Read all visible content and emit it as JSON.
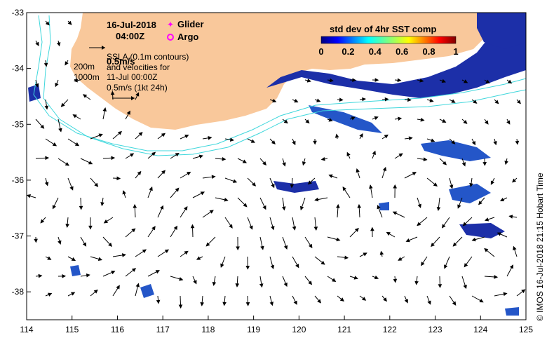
{
  "map": {
    "date": "16-Jul-2018",
    "time": "04:00Z",
    "legend_glider": "Glider",
    "legend_argo": "Argo",
    "colorbar_title": "std dev of 4hr SST comp",
    "colorbar_ticks": [
      "0",
      "0.2",
      "0.4",
      "0.6",
      "0.8",
      "1"
    ],
    "scale_label": "0.5m/s",
    "sla_note_1": "SSLA (0.1m contours)",
    "sla_note_2": "and velocities for",
    "sla_note_3": "11-Jul 00:00Z",
    "sla_note_4": "0.5m/s (1kt 24h)",
    "isobath_200": "200m",
    "isobath_1000": "1000m",
    "credit": "© IMOS 16-Jul-2018 21:15 Hobart Time",
    "lon_ticks": [
      "114",
      "115",
      "116",
      "117",
      "118",
      "119",
      "120",
      "121",
      "122",
      "123",
      "124",
      "125"
    ],
    "lat_ticks": [
      "-33",
      "-34",
      "-35",
      "-36",
      "-37",
      "-38"
    ],
    "lon_range": [
      114,
      125
    ],
    "lat_range": [
      -38.5,
      -33
    ],
    "colors": {
      "land": "#f9c89b",
      "ocean": "#ffffff",
      "isobath": "#3fd7dc",
      "sst_high": "#1c2fa8",
      "sst_low": "#2456c8",
      "glider": "#ff00ff",
      "argo": "#ff00ff"
    }
  }
}
